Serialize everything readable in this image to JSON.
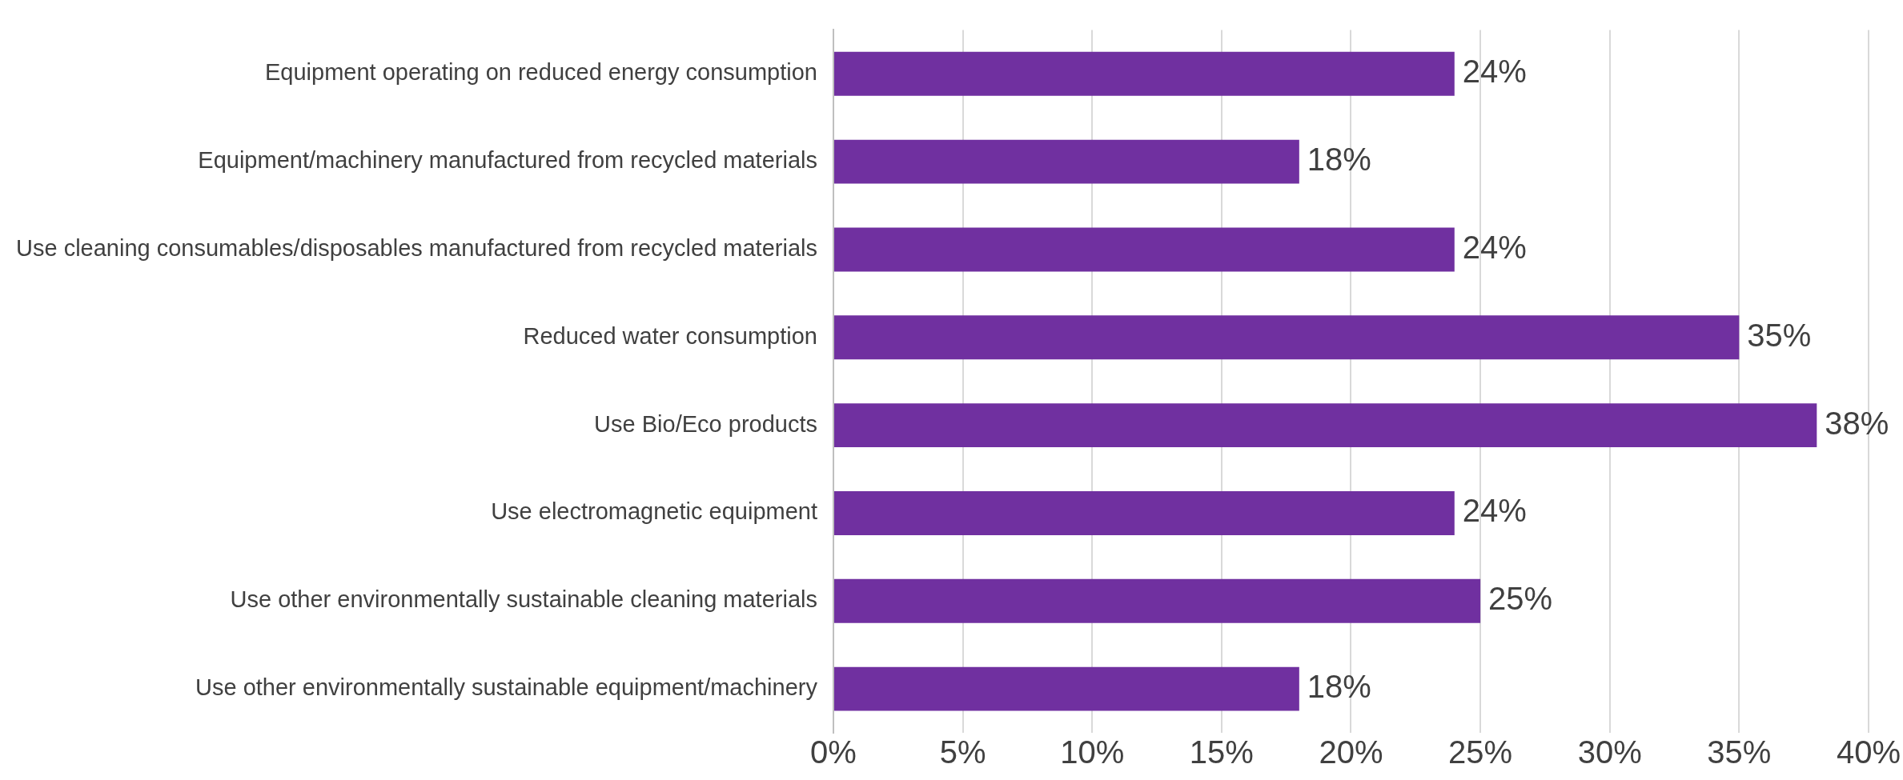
{
  "chart_data": {
    "type": "bar",
    "orientation": "horizontal",
    "categories": [
      "Equipment operating on reduced energy consumption",
      "Equipment/machinery manufactured from recycled materials",
      "Use cleaning consumables/disposables manufactured from recycled materials",
      "Reduced water consumption",
      "Use Bio/Eco products",
      "Use electromagnetic equipment",
      "Use other environmentally sustainable cleaning materials",
      "Use other environmentally sustainable equipment/machinery"
    ],
    "values": [
      24,
      18,
      24,
      35,
      38,
      24,
      25,
      18
    ],
    "value_labels": [
      "24%",
      "18%",
      "24%",
      "35%",
      "38%",
      "24%",
      "25%",
      "18%"
    ],
    "color": "#7030a0",
    "xlim": [
      0,
      40
    ],
    "xticks": [
      {
        "value": 0,
        "label": "0%"
      },
      {
        "value": 5,
        "label": "5%"
      },
      {
        "value": 10,
        "label": "10%"
      },
      {
        "value": 15,
        "label": "15%"
      },
      {
        "value": 20,
        "label": "20%"
      },
      {
        "value": 25,
        "label": "25%"
      },
      {
        "value": 30,
        "label": "30%"
      },
      {
        "value": 35,
        "label": "35%"
      },
      {
        "value": 40,
        "label": "40%"
      }
    ],
    "grid": "x",
    "legend": false
  }
}
